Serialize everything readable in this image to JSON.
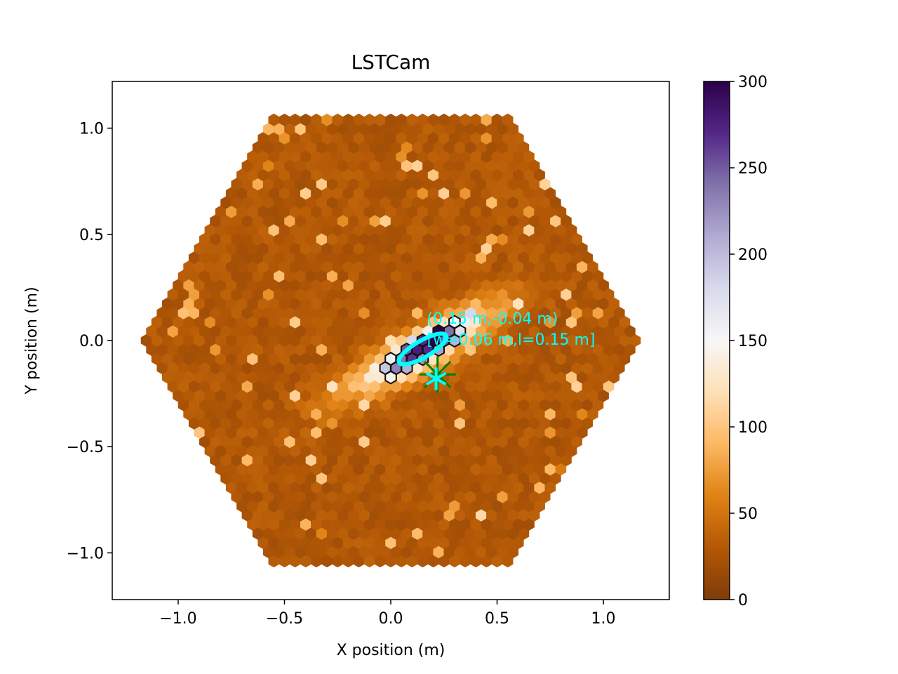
{
  "chart_data": {
    "type": "heatmap",
    "title": "LSTCam",
    "xlabel": "X position (m)",
    "ylabel": "Y position (m)",
    "xlim": [
      -1.31,
      1.31
    ],
    "ylim": [
      -1.22,
      1.22
    ],
    "x_ticks": [
      {
        "value": -1.0,
        "label": "−1.0"
      },
      {
        "value": -0.5,
        "label": "−0.5"
      },
      {
        "value": 0.0,
        "label": "0.0"
      },
      {
        "value": 0.5,
        "label": "0.5"
      },
      {
        "value": 1.0,
        "label": "1.0"
      }
    ],
    "y_ticks": [
      {
        "value": -1.0,
        "label": "−1.0"
      },
      {
        "value": -0.5,
        "label": "−0.5"
      },
      {
        "value": 0.0,
        "label": "0.0"
      },
      {
        "value": 0.5,
        "label": "0.5"
      },
      {
        "value": 1.0,
        "label": "1.0"
      }
    ],
    "grid": false,
    "colorbar": {
      "range": [
        0,
        300
      ],
      "ticks": [
        {
          "value": 0,
          "label": "0"
        },
        {
          "value": 50,
          "label": "50"
        },
        {
          "value": 100,
          "label": "100"
        },
        {
          "value": 150,
          "label": "150"
        },
        {
          "value": 200,
          "label": "200"
        },
        {
          "value": 250,
          "label": "250"
        },
        {
          "value": 300,
          "label": "300"
        }
      ],
      "colormap": [
        "#7f3b08",
        "#b35806",
        "#e08214",
        "#fdb863",
        "#fee0b6",
        "#f7f7f7",
        "#d8daeb",
        "#b2abd2",
        "#8073ac",
        "#542788",
        "#2d004b"
      ]
    },
    "camera": {
      "outline": "hexagon",
      "outer_radius": 1.2,
      "pixel_spacing": 0.05,
      "background_level": 20
    },
    "shower": {
      "band_direction_deg": 30,
      "band_center": [
        0.15,
        -0.04
      ],
      "core_pixels_outlined": true
    },
    "hillas_ellipse": {
      "center": [
        0.15,
        -0.04
      ],
      "width": 0.06,
      "length": 0.15,
      "angle_deg": 30,
      "color": "#00ffff"
    },
    "source_marker": {
      "position": [
        0.22,
        -0.16
      ],
      "color": "#008000"
    },
    "annotations": [
      {
        "text": "(0.15 m,-0.04 m)",
        "x": 0.17,
        "y": 0.08
      },
      {
        "text": "[w=0.06 m,l=0.15 m]",
        "x": 0.17,
        "y": -0.02
      }
    ]
  }
}
